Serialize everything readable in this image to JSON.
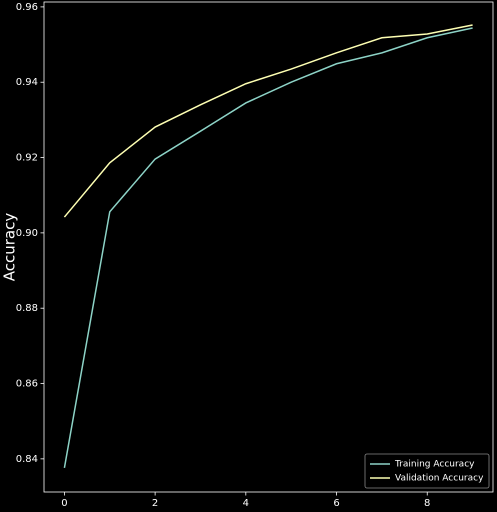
{
  "chart_data": {
    "type": "line",
    "y_label": "Accuracy",
    "x": [
      0,
      1,
      2,
      3,
      4,
      5,
      6,
      7,
      8,
      9
    ],
    "series": [
      {
        "name": "Training Accuracy",
        "color": "#8dd3c7",
        "values": [
          0.8376,
          0.9056,
          0.9196,
          0.927,
          0.9345,
          0.94,
          0.9449,
          0.9478,
          0.9518,
          0.9544
        ]
      },
      {
        "name": "Validation Accuracy",
        "color": "#feffb3",
        "values": [
          0.9042,
          0.9186,
          0.9281,
          0.934,
          0.9396,
          0.9435,
          0.9478,
          0.9518,
          0.9528,
          0.9552
        ]
      }
    ],
    "xlim": [
      -0.45,
      9.45
    ],
    "ylim": [
      0.8312,
      0.9613
    ],
    "xticks": [
      0,
      2,
      4,
      6,
      8
    ],
    "yticks": [
      0.84,
      0.86,
      0.88,
      {
        "value": 0.9,
        "label": "0.90"
      },
      0.92,
      0.94,
      0.96
    ],
    "legend": "lower right"
  }
}
